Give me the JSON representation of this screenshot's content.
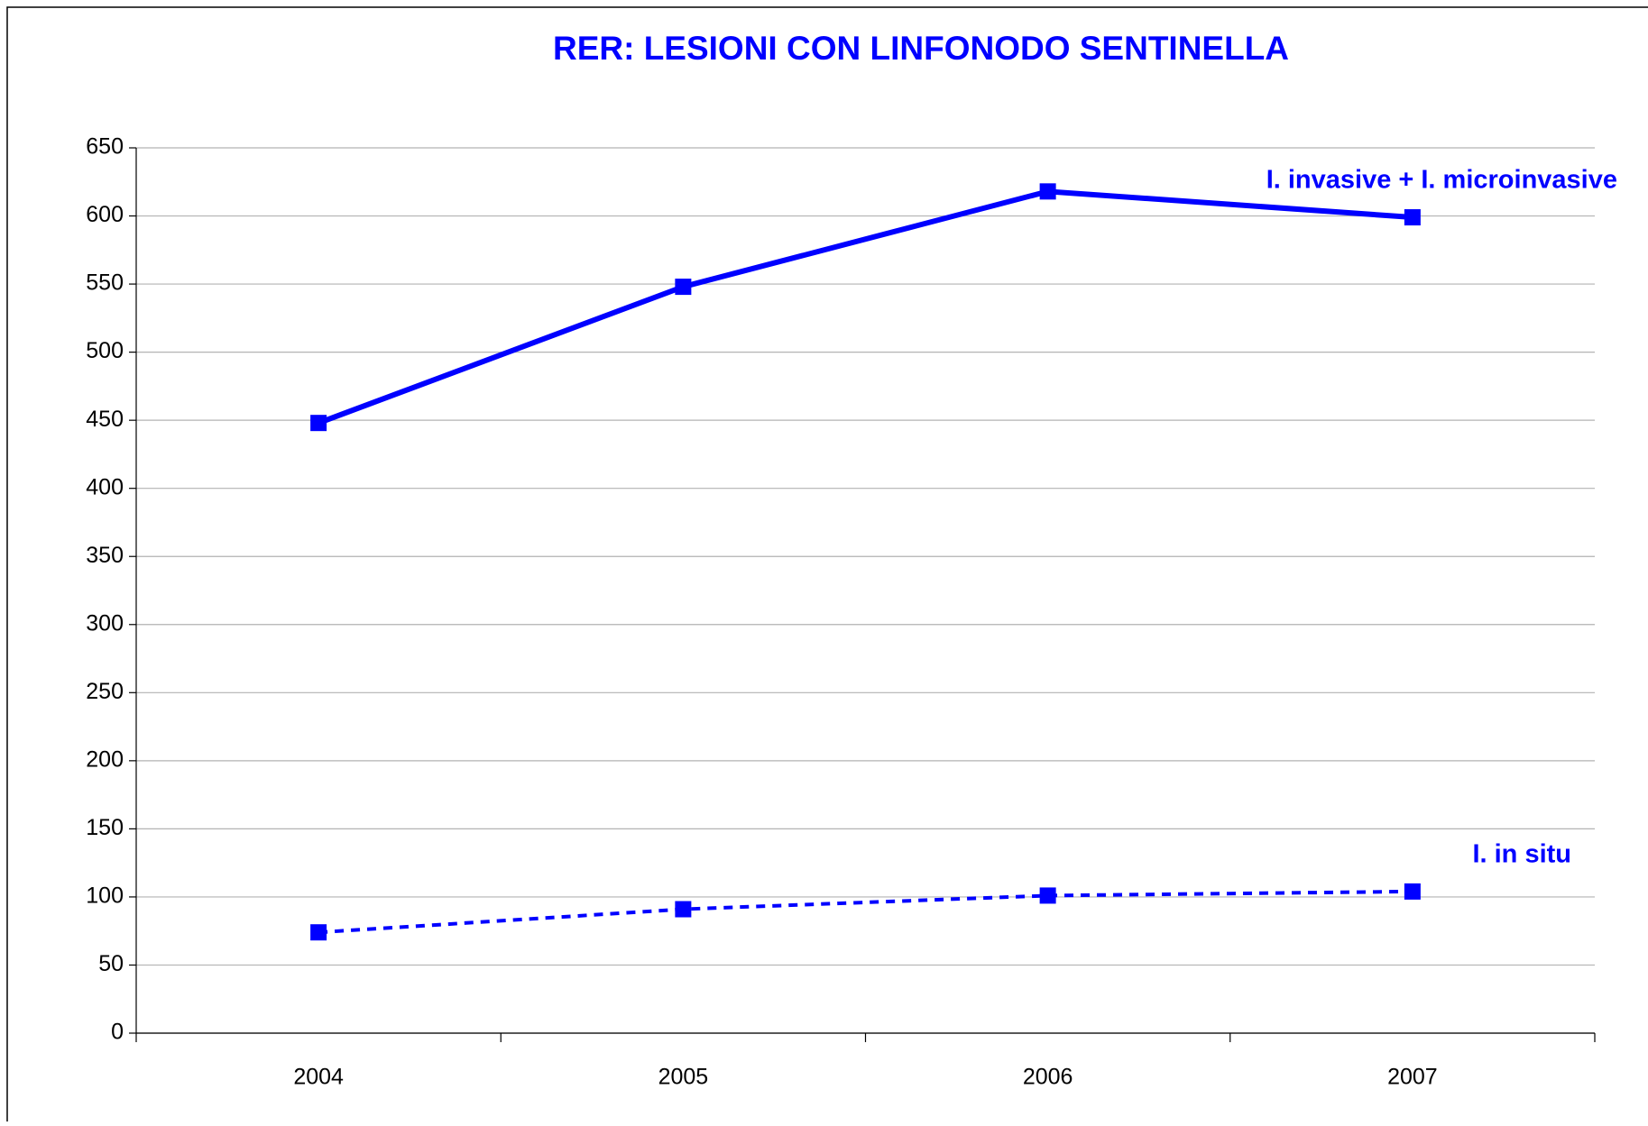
{
  "chart_data": {
    "type": "line",
    "title": "RER: LESIONI CON LINFONODO SENTINELLA",
    "categories": [
      "2004",
      "2005",
      "2006",
      "2007"
    ],
    "series": [
      {
        "name": "I. invasive + I. microinvasive",
        "color": "#0000ff",
        "style": "solid",
        "values": [
          448,
          548,
          618,
          599
        ]
      },
      {
        "name": "I. in situ",
        "color": "#0000ff",
        "style": "dotted",
        "values": [
          74,
          91,
          101,
          104
        ]
      }
    ],
    "ylim": [
      0,
      650
    ],
    "yticks": [
      0,
      50,
      100,
      150,
      200,
      250,
      300,
      350,
      400,
      450,
      500,
      550,
      600,
      650
    ],
    "grid": true
  }
}
